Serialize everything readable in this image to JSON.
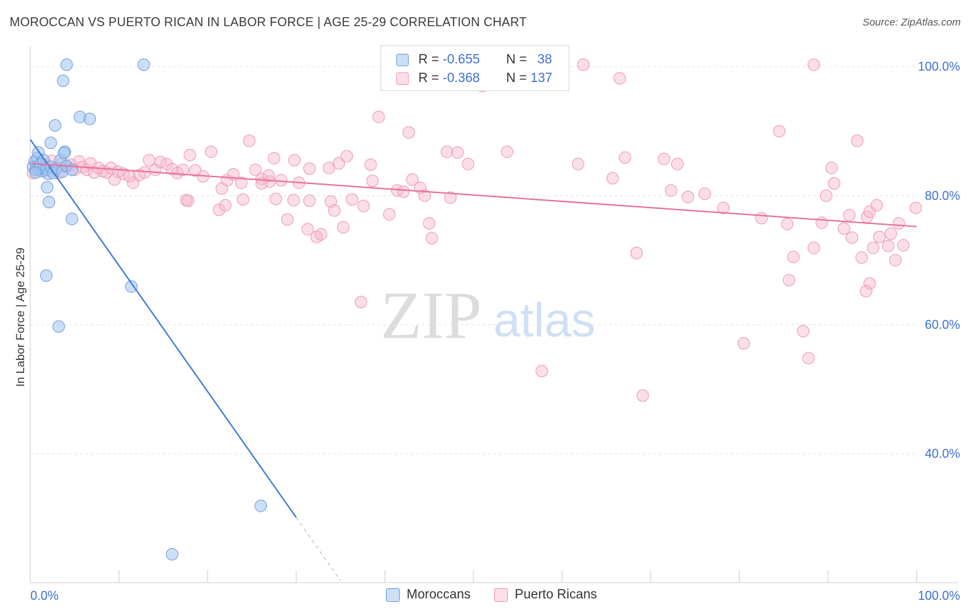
{
  "title": "MOROCCAN VS PUERTO RICAN IN LABOR FORCE | AGE 25-29 CORRELATION CHART",
  "source": "Source: ZipAtlas.com",
  "watermark": {
    "zip": "ZIP",
    "atlas": "atlas"
  },
  "legend_top": {
    "rows": [
      {
        "r_label": "R = ",
        "r_value": "-0.655",
        "n_label": "N = ",
        "n_value": "38",
        "color": "#a9c8f0"
      },
      {
        "r_label": "R = ",
        "r_value": "-0.368",
        "n_label": "N = ",
        "n_value": "137",
        "color": "#f7b6cb"
      }
    ]
  },
  "legend_bottom": [
    {
      "label": "Moroccans",
      "color": "#a9c8f0"
    },
    {
      "label": "Puerto Ricans",
      "color": "#f7b6cb"
    }
  ],
  "colors": {
    "moroccan_fill": "rgba(160,196,240,0.55)",
    "moroccan_stroke": "#6f9fdc",
    "moroccan_line": "#3a78d6",
    "puerto_fill": "rgba(247,182,203,0.45)",
    "puerto_stroke": "#ee9ab6",
    "puerto_line": "#e8709a",
    "tick_label": "#3d6fd0",
    "grid": "#e2e2e2"
  },
  "chart_data": {
    "type": "scatter",
    "title": "MOROCCAN VS PUERTO RICAN IN LABOR FORCE | AGE 25-29 CORRELATION CHART",
    "xlabel": "",
    "ylabel": "In Labor Force | Age 25-29",
    "xlim": [
      0,
      100
    ],
    "ylim": [
      20,
      102
    ],
    "x_tick_labels": [
      {
        "value": 0,
        "label": "0.0%"
      },
      {
        "value": 100,
        "label": "100.0%"
      }
    ],
    "y_tick_labels": [
      {
        "value": 100,
        "label": "100.0%"
      },
      {
        "value": 80,
        "label": "80.0%"
      },
      {
        "value": 60,
        "label": "60.0%"
      },
      {
        "value": 40,
        "label": "40.0%"
      }
    ],
    "grid": true,
    "legend_position": "top-center",
    "series": [
      {
        "name": "Moroccans",
        "points": [
          [
            0.3,
            84.5
          ],
          [
            0.5,
            85.3
          ],
          [
            0.6,
            84.0
          ],
          [
            0.8,
            85.8
          ],
          [
            1.0,
            84.1
          ],
          [
            1.2,
            85.0
          ],
          [
            1.4,
            83.8
          ],
          [
            1.6,
            84.3
          ],
          [
            0.9,
            86.7
          ],
          [
            1.1,
            84.8
          ],
          [
            1.5,
            85.5
          ],
          [
            1.8,
            84.0
          ],
          [
            2.0,
            83.4
          ],
          [
            2.3,
            84.5
          ],
          [
            2.6,
            83.5
          ],
          [
            3.0,
            84.2
          ],
          [
            3.4,
            85.5
          ],
          [
            3.6,
            83.7
          ],
          [
            3.9,
            86.8
          ],
          [
            4.1,
            84.6
          ],
          [
            4.7,
            84.0
          ],
          [
            1.9,
            81.3
          ],
          [
            2.1,
            79.0
          ],
          [
            2.3,
            88.2
          ],
          [
            2.8,
            90.9
          ],
          [
            3.8,
            86.6
          ],
          [
            4.7,
            76.4
          ],
          [
            5.6,
            92.2
          ],
          [
            6.7,
            91.9
          ],
          [
            3.7,
            97.8
          ],
          [
            4.1,
            100.3
          ],
          [
            12.8,
            100.3
          ],
          [
            1.8,
            67.6
          ],
          [
            11.4,
            65.9
          ],
          [
            3.2,
            59.7
          ],
          [
            26.0,
            31.9
          ],
          [
            16.0,
            24.4
          ],
          [
            0.6,
            83.6
          ]
        ],
        "trend": {
          "x0": 0,
          "y0": 88.7,
          "x1": 30.0,
          "y1": 30.1,
          "dashed_to": [
            35.0,
            20.3
          ]
        }
      },
      {
        "name": "Puerto Ricans",
        "points": [
          [
            0.3,
            83.5
          ],
          [
            0.8,
            84.3
          ],
          [
            1.2,
            85.0
          ],
          [
            1.6,
            84.8
          ],
          [
            2.0,
            84.0
          ],
          [
            2.4,
            85.4
          ],
          [
            2.8,
            84.3
          ],
          [
            3.2,
            83.5
          ],
          [
            3.6,
            85.0
          ],
          [
            4.0,
            84.5
          ],
          [
            4.6,
            84.8
          ],
          [
            5.0,
            84.0
          ],
          [
            5.5,
            85.3
          ],
          [
            5.9,
            84.4
          ],
          [
            6.4,
            84.0
          ],
          [
            6.8,
            85.0
          ],
          [
            7.2,
            83.6
          ],
          [
            7.7,
            84.3
          ],
          [
            8.2,
            83.8
          ],
          [
            8.6,
            83.6
          ],
          [
            9.1,
            84.3
          ],
          [
            9.5,
            82.5
          ],
          [
            9.9,
            83.7
          ],
          [
            10.5,
            83.4
          ],
          [
            11.2,
            83.0
          ],
          [
            11.6,
            82.0
          ],
          [
            12.3,
            83.2
          ],
          [
            12.9,
            83.6
          ],
          [
            13.4,
            85.5
          ],
          [
            14.1,
            84.0
          ],
          [
            14.7,
            85.2
          ],
          [
            15.4,
            84.9
          ],
          [
            16.0,
            84.1
          ],
          [
            16.6,
            83.5
          ],
          [
            17.2,
            84.0
          ],
          [
            18.0,
            86.3
          ],
          [
            18.6,
            83.9
          ],
          [
            19.5,
            83.0
          ],
          [
            20.4,
            86.8
          ],
          [
            21.6,
            81.1
          ],
          [
            22.2,
            82.4
          ],
          [
            22.9,
            83.3
          ],
          [
            23.8,
            82.0
          ],
          [
            24.7,
            88.5
          ],
          [
            25.4,
            84.0
          ],
          [
            26.1,
            82.6
          ],
          [
            27.0,
            82.2
          ],
          [
            26.1,
            81.9
          ],
          [
            26.9,
            83.1
          ],
          [
            27.5,
            85.8
          ],
          [
            28.3,
            82.4
          ],
          [
            29.8,
            85.5
          ],
          [
            31.5,
            84.2
          ],
          [
            33.7,
            84.3
          ],
          [
            34.8,
            85.0
          ],
          [
            35.7,
            86.1
          ],
          [
            21.3,
            77.8
          ],
          [
            17.6,
            79.3
          ],
          [
            17.8,
            79.2
          ],
          [
            22.0,
            78.5
          ],
          [
            24.0,
            79.4
          ],
          [
            27.7,
            79.5
          ],
          [
            29.0,
            76.3
          ],
          [
            29.7,
            79.3
          ],
          [
            30.3,
            82.0
          ],
          [
            31.3,
            74.8
          ],
          [
            31.5,
            79.2
          ],
          [
            32.3,
            73.6
          ],
          [
            32.8,
            74.0
          ],
          [
            33.9,
            79.1
          ],
          [
            34.3,
            77.7
          ],
          [
            35.3,
            75.1
          ],
          [
            36.3,
            79.4
          ],
          [
            37.6,
            78.4
          ],
          [
            38.4,
            84.8
          ],
          [
            38.6,
            82.3
          ],
          [
            39.3,
            92.2
          ],
          [
            40.5,
            77.1
          ],
          [
            41.4,
            80.8
          ],
          [
            42.1,
            80.6
          ],
          [
            42.7,
            89.8
          ],
          [
            43.1,
            82.5
          ],
          [
            44.0,
            81.2
          ],
          [
            44.5,
            80.0
          ],
          [
            45.0,
            75.7
          ],
          [
            45.3,
            73.4
          ],
          [
            47.0,
            86.8
          ],
          [
            47.4,
            79.7
          ],
          [
            48.2,
            86.7
          ],
          [
            49.4,
            84.9
          ],
          [
            51.0,
            97.0
          ],
          [
            51.7,
            100.3
          ],
          [
            53.8,
            86.8
          ],
          [
            56.5,
            100.3
          ],
          [
            57.7,
            52.8
          ],
          [
            61.8,
            84.9
          ],
          [
            62.4,
            100.3
          ],
          [
            65.7,
            82.7
          ],
          [
            66.5,
            98.2
          ],
          [
            67.1,
            85.9
          ],
          [
            68.4,
            71.1
          ],
          [
            69.1,
            49.0
          ],
          [
            71.5,
            85.7
          ],
          [
            72.3,
            80.8
          ],
          [
            73.0,
            84.9
          ],
          [
            74.2,
            79.8
          ],
          [
            76.1,
            80.3
          ],
          [
            78.2,
            78.1
          ],
          [
            80.5,
            57.1
          ],
          [
            82.5,
            76.5
          ],
          [
            84.5,
            90.0
          ],
          [
            85.4,
            75.6
          ],
          [
            85.6,
            66.9
          ],
          [
            86.1,
            70.5
          ],
          [
            87.2,
            59.0
          ],
          [
            87.8,
            54.8
          ],
          [
            88.4,
            71.9
          ],
          [
            89.3,
            75.8
          ],
          [
            89.8,
            80.0
          ],
          [
            90.4,
            84.3
          ],
          [
            90.7,
            81.9
          ],
          [
            91.8,
            74.9
          ],
          [
            92.4,
            77.0
          ],
          [
            92.7,
            73.5
          ],
          [
            93.3,
            88.5
          ],
          [
            93.8,
            70.4
          ],
          [
            94.4,
            76.7
          ],
          [
            94.7,
            77.5
          ],
          [
            95.1,
            71.9
          ],
          [
            95.5,
            78.5
          ],
          [
            95.8,
            73.6
          ],
          [
            96.8,
            72.2
          ],
          [
            97.1,
            74.1
          ],
          [
            97.6,
            70.0
          ],
          [
            98.0,
            75.7
          ],
          [
            98.5,
            72.3
          ],
          [
            88.4,
            100.3
          ],
          [
            99.9,
            78.1
          ],
          [
            94.7,
            66.4
          ],
          [
            94.3,
            65.2
          ],
          [
            37.3,
            63.5
          ]
        ],
        "trend": {
          "x0": 0,
          "y0": 85.0,
          "x1": 100,
          "y1": 75.2
        }
      }
    ]
  }
}
